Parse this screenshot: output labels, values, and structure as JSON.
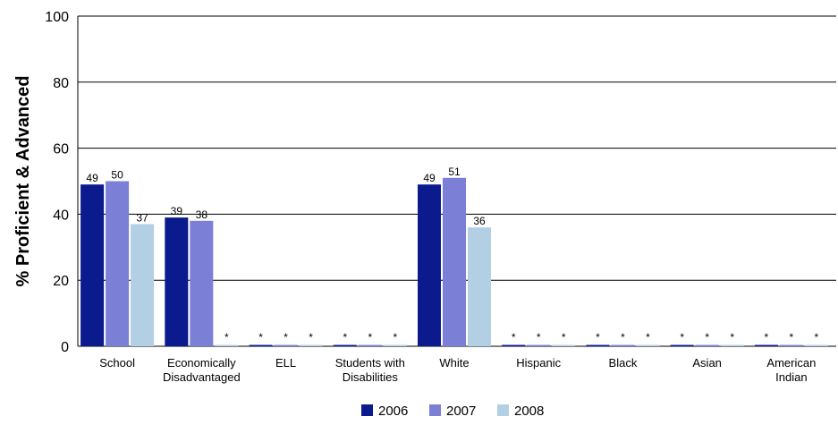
{
  "chart_data": {
    "type": "bar",
    "ylabel": "% Proficient & Advanced",
    "xlabel": "",
    "ylim": [
      0,
      100
    ],
    "yticks": [
      0,
      20,
      40,
      60,
      80,
      100
    ],
    "grid": true,
    "legend_position": "bottom-center",
    "categories": [
      [
        "School"
      ],
      [
        "Economically",
        "Disadvantaged"
      ],
      [
        "ELL"
      ],
      [
        "Students with",
        "Disabilities"
      ],
      [
        "White"
      ],
      [
        "Hispanic"
      ],
      [
        "Black"
      ],
      [
        "Asian"
      ],
      [
        "American",
        "Indian"
      ]
    ],
    "series": [
      {
        "name": "2006",
        "color": "#0b1a8c",
        "values": [
          49,
          39,
          null,
          null,
          49,
          null,
          null,
          null,
          null
        ]
      },
      {
        "name": "2007",
        "color": "#7b7fd6",
        "values": [
          50,
          38,
          null,
          null,
          51,
          null,
          null,
          null,
          null
        ]
      },
      {
        "name": "2008",
        "color": "#b3cfe3",
        "values": [
          37,
          null,
          null,
          null,
          36,
          null,
          null,
          null,
          null
        ]
      }
    ],
    "suppressed_marker": "*"
  }
}
